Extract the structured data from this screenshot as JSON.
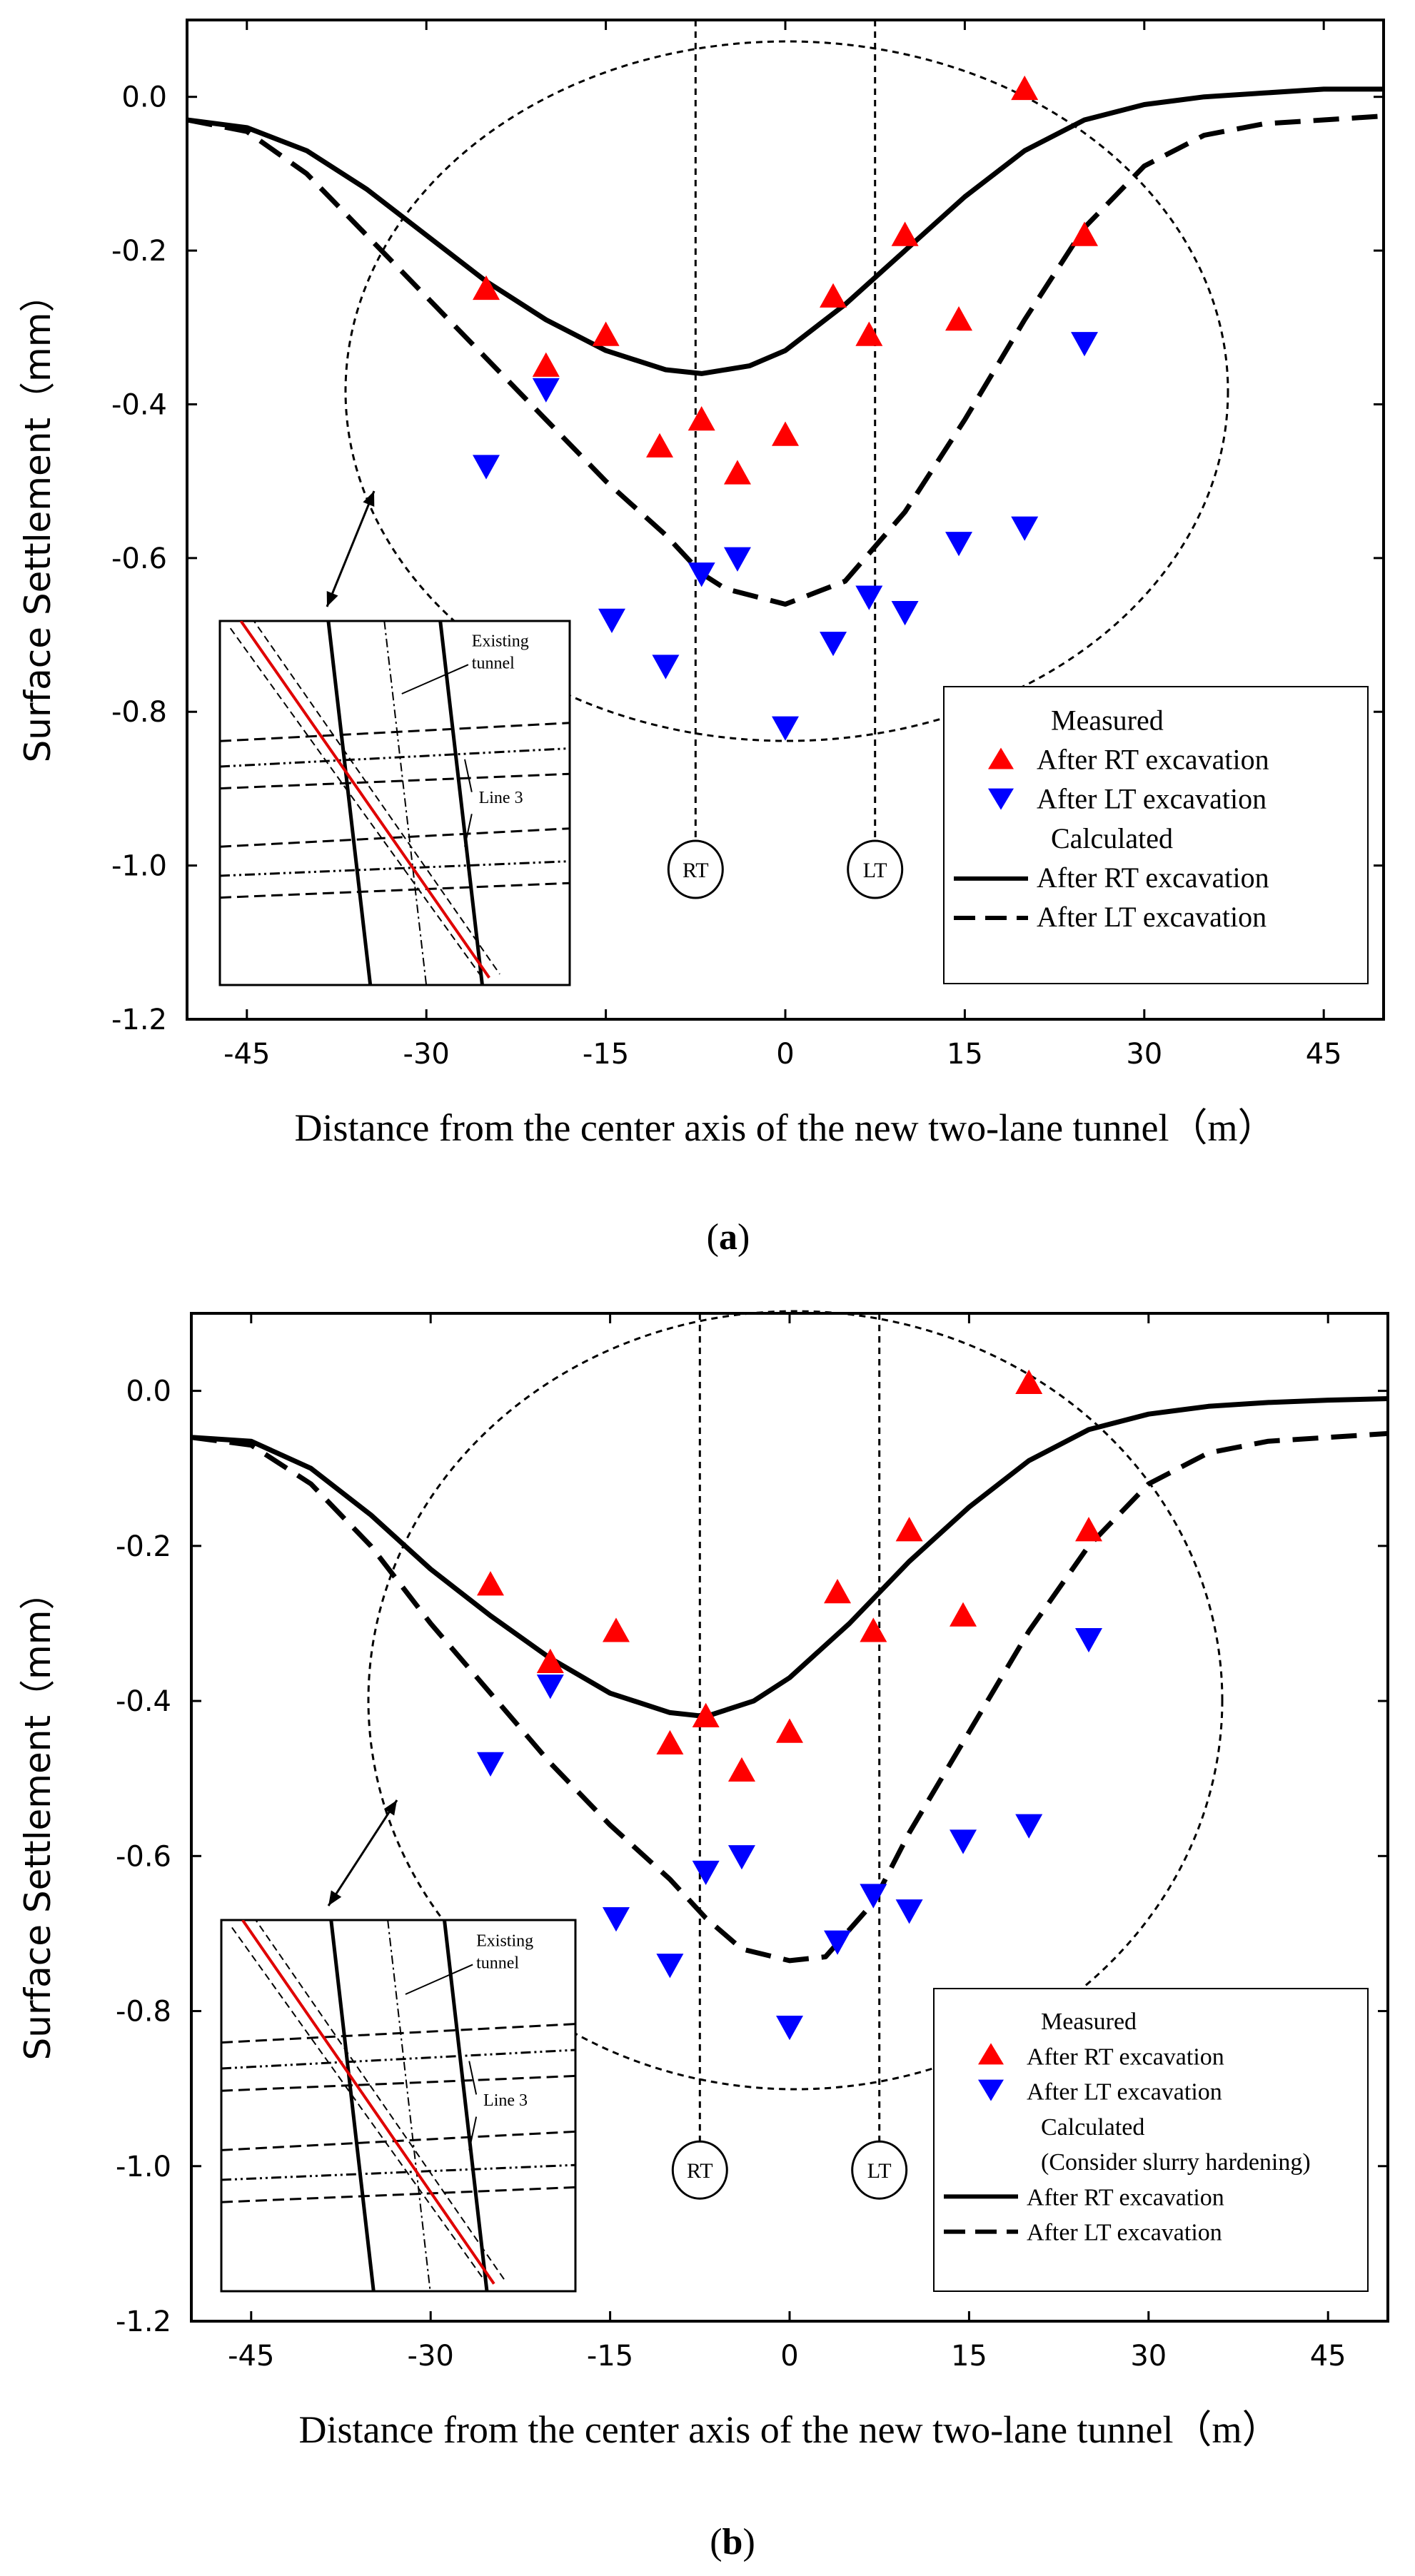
{
  "chart_data": [
    {
      "type": "line",
      "panel": "a",
      "caption_open": "(",
      "caption_letter": "a",
      "caption_close": ")",
      "xlabel": "Distance from the center axis of the new two-lane tunnel（m）",
      "ylabel": "Surface Settlement（mm）",
      "xlim": [
        -50,
        50
      ],
      "ylim": [
        -1.2,
        0.1
      ],
      "xticks": [
        -45,
        -30,
        -15,
        0,
        15,
        30,
        45
      ],
      "xtick_labels": [
        "-45",
        "-30",
        "-15",
        "0",
        "15",
        "30",
        "45"
      ],
      "yticks": [
        0.0,
        -0.2,
        -0.4,
        -0.6,
        -0.8,
        -1.0,
        -1.2
      ],
      "ytick_labels": [
        "0.0",
        "-0.2",
        "-0.4",
        "-0.6",
        "-0.8",
        "-1.0",
        "-1.2"
      ],
      "markers": {
        "RT": {
          "label": "RT",
          "x": -7.5
        },
        "LT": {
          "label": "LT",
          "x": 7.5
        }
      },
      "legend": {
        "group1": "Measured",
        "rt_measured": "After RT excavation",
        "lt_measured": "After LT excavation",
        "group2": "Calculated",
        "group2_note": "",
        "rt_calc": "After RT excavation",
        "lt_calc": "After LT excavation"
      },
      "inset": {
        "label1": "Existing",
        "label2": "tunnel",
        "label3": "Line 3"
      },
      "series": [
        {
          "name": "Measured After RT excavation",
          "style": "triangle-up",
          "color": "#ff0000",
          "points": [
            [
              -25,
              -0.25
            ],
            [
              -20,
              -0.35
            ],
            [
              -15,
              -0.31
            ],
            [
              -10.5,
              -0.455
            ],
            [
              -7,
              -0.42
            ],
            [
              -4,
              -0.49
            ],
            [
              0,
              -0.44
            ],
            [
              4,
              -0.26
            ],
            [
              7,
              -0.31
            ],
            [
              10,
              -0.18
            ],
            [
              14.5,
              -0.29
            ],
            [
              20,
              0.01
            ],
            [
              25,
              -0.18
            ]
          ]
        },
        {
          "name": "Measured After LT excavation",
          "style": "triangle-down",
          "color": "#0000ff",
          "points": [
            [
              -25,
              -0.48
            ],
            [
              -20,
              -0.38
            ],
            [
              -14.5,
              -0.68
            ],
            [
              -10,
              -0.74
            ],
            [
              -7,
              -0.62
            ],
            [
              -4,
              -0.6
            ],
            [
              0,
              -0.82
            ],
            [
              4,
              -0.71
            ],
            [
              7,
              -0.65
            ],
            [
              10,
              -0.67
            ],
            [
              14.5,
              -0.58
            ],
            [
              20,
              -0.56
            ],
            [
              25,
              -0.32
            ]
          ]
        },
        {
          "name": "Calculated After RT excavation",
          "style": "solid",
          "points": [
            [
              -50,
              -0.03
            ],
            [
              -45,
              -0.04
            ],
            [
              -40,
              -0.07
            ],
            [
              -35,
              -0.12
            ],
            [
              -30,
              -0.18
            ],
            [
              -25,
              -0.24
            ],
            [
              -20,
              -0.29
            ],
            [
              -15,
              -0.33
            ],
            [
              -10,
              -0.355
            ],
            [
              -7,
              -0.36
            ],
            [
              -3,
              -0.35
            ],
            [
              0,
              -0.33
            ],
            [
              5,
              -0.27
            ],
            [
              10,
              -0.2
            ],
            [
              15,
              -0.13
            ],
            [
              20,
              -0.07
            ],
            [
              25,
              -0.03
            ],
            [
              30,
              -0.01
            ],
            [
              35,
              0.0
            ],
            [
              40,
              0.005
            ],
            [
              45,
              0.01
            ],
            [
              50,
              0.01
            ]
          ]
        },
        {
          "name": "Calculated After LT excavation",
          "style": "dashed",
          "points": [
            [
              -50,
              -0.03
            ],
            [
              -45,
              -0.045
            ],
            [
              -40,
              -0.1
            ],
            [
              -35,
              -0.18
            ],
            [
              -30,
              -0.26
            ],
            [
              -25,
              -0.34
            ],
            [
              -20,
              -0.42
            ],
            [
              -15,
              -0.5
            ],
            [
              -10,
              -0.57
            ],
            [
              -7,
              -0.62
            ],
            [
              -5,
              -0.64
            ],
            [
              0,
              -0.66
            ],
            [
              5,
              -0.63
            ],
            [
              10,
              -0.54
            ],
            [
              15,
              -0.42
            ],
            [
              20,
              -0.29
            ],
            [
              25,
              -0.17
            ],
            [
              30,
              -0.09
            ],
            [
              35,
              -0.05
            ],
            [
              40,
              -0.035
            ],
            [
              45,
              -0.03
            ],
            [
              50,
              -0.025
            ]
          ]
        }
      ]
    },
    {
      "type": "line",
      "panel": "b",
      "caption_open": "(",
      "caption_letter": "b",
      "caption_close": ")",
      "xlabel": "Distance from the center axis of the new two-lane tunnel（m）",
      "ylabel": "Surface Settlement（mm）",
      "xlim": [
        -50,
        50
      ],
      "ylim": [
        -1.2,
        0.1
      ],
      "xticks": [
        -45,
        -30,
        -15,
        0,
        15,
        30,
        45
      ],
      "xtick_labels": [
        "-45",
        "-30",
        "-15",
        "0",
        "15",
        "30",
        "45"
      ],
      "yticks": [
        0.0,
        -0.2,
        -0.4,
        -0.6,
        -0.8,
        -1.0,
        -1.2
      ],
      "ytick_labels": [
        "0.0",
        "-0.2",
        "-0.4",
        "-0.6",
        "-0.8",
        "-1.0",
        "-1.2"
      ],
      "markers": {
        "RT": {
          "label": "RT",
          "x": -7.5
        },
        "LT": {
          "label": "LT",
          "x": 7.5
        }
      },
      "legend": {
        "group1": "Measured",
        "rt_measured": "After RT excavation",
        "lt_measured": "After LT excavation",
        "group2": "Calculated",
        "group2_note": "(Consider slurry hardening)",
        "rt_calc": "After RT excavation",
        "lt_calc": "After LT excavation"
      },
      "inset": {
        "label1": "Existing",
        "label2": "tunnel",
        "label3": "Line 3"
      },
      "series": [
        {
          "name": "Measured After RT excavation",
          "style": "triangle-up",
          "color": "#ff0000",
          "points": [
            [
              -25,
              -0.25
            ],
            [
              -20,
              -0.35
            ],
            [
              -14.5,
              -0.31
            ],
            [
              -10,
              -0.455
            ],
            [
              -7,
              -0.42
            ],
            [
              -4,
              -0.49
            ],
            [
              0,
              -0.44
            ],
            [
              4,
              -0.26
            ],
            [
              7,
              -0.31
            ],
            [
              10,
              -0.18
            ],
            [
              14.5,
              -0.29
            ],
            [
              20,
              0.01
            ],
            [
              25,
              -0.18
            ]
          ]
        },
        {
          "name": "Measured After LT excavation",
          "style": "triangle-down",
          "color": "#0000ff",
          "points": [
            [
              -25,
              -0.48
            ],
            [
              -20,
              -0.38
            ],
            [
              -14.5,
              -0.68
            ],
            [
              -10,
              -0.74
            ],
            [
              -7,
              -0.62
            ],
            [
              -4,
              -0.6
            ],
            [
              0,
              -0.82
            ],
            [
              4,
              -0.71
            ],
            [
              7,
              -0.65
            ],
            [
              10,
              -0.67
            ],
            [
              14.5,
              -0.58
            ],
            [
              20,
              -0.56
            ],
            [
              25,
              -0.32
            ]
          ]
        },
        {
          "name": "Calculated After RT excavation",
          "style": "solid",
          "points": [
            [
              -50,
              -0.06
            ],
            [
              -45,
              -0.065
            ],
            [
              -40,
              -0.1
            ],
            [
              -35,
              -0.16
            ],
            [
              -30,
              -0.23
            ],
            [
              -25,
              -0.29
            ],
            [
              -20,
              -0.345
            ],
            [
              -15,
              -0.39
            ],
            [
              -10,
              -0.415
            ],
            [
              -7,
              -0.42
            ],
            [
              -3,
              -0.4
            ],
            [
              0,
              -0.37
            ],
            [
              5,
              -0.3
            ],
            [
              10,
              -0.22
            ],
            [
              15,
              -0.15
            ],
            [
              20,
              -0.09
            ],
            [
              25,
              -0.05
            ],
            [
              30,
              -0.03
            ],
            [
              35,
              -0.02
            ],
            [
              40,
              -0.015
            ],
            [
              45,
              -0.012
            ],
            [
              50,
              -0.01
            ]
          ]
        },
        {
          "name": "Calculated After LT excavation",
          "style": "dashed",
          "points": [
            [
              -50,
              -0.06
            ],
            [
              -45,
              -0.07
            ],
            [
              -40,
              -0.12
            ],
            [
              -35,
              -0.2
            ],
            [
              -30,
              -0.3
            ],
            [
              -25,
              -0.39
            ],
            [
              -20,
              -0.48
            ],
            [
              -15,
              -0.56
            ],
            [
              -10,
              -0.63
            ],
            [
              -7,
              -0.68
            ],
            [
              -4,
              -0.72
            ],
            [
              0,
              -0.735
            ],
            [
              3,
              -0.73
            ],
            [
              7,
              -0.66
            ],
            [
              10,
              -0.57
            ],
            [
              15,
              -0.44
            ],
            [
              20,
              -0.31
            ],
            [
              25,
              -0.2
            ],
            [
              30,
              -0.12
            ],
            [
              35,
              -0.08
            ],
            [
              40,
              -0.065
            ],
            [
              45,
              -0.06
            ],
            [
              50,
              -0.055
            ]
          ]
        }
      ]
    }
  ]
}
